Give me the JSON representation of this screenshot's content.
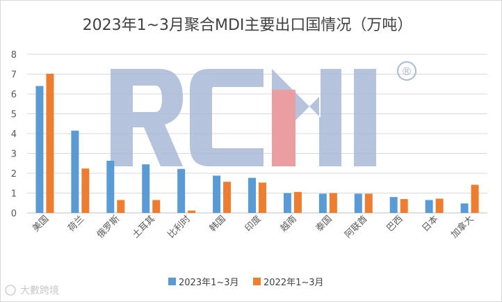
{
  "chart_data": {
    "type": "bar",
    "title": "2023年1~3月聚合MDI主要出口国情况（万吨）",
    "categories": [
      "美国",
      "荷兰",
      "俄罗斯",
      "土耳其",
      "比利时",
      "韩国",
      "印度",
      "越南",
      "泰国",
      "阿联酋",
      "巴西",
      "日本",
      "加拿大"
    ],
    "series": [
      {
        "name": "2023年1~3月",
        "color": "#5b9bd5",
        "values": [
          6.4,
          4.15,
          2.63,
          2.45,
          2.22,
          1.88,
          1.77,
          1.0,
          0.97,
          0.97,
          0.8,
          0.65,
          0.48
        ]
      },
      {
        "name": "2022年1~3月",
        "color": "#ed7d31",
        "values": [
          7.02,
          2.24,
          0.65,
          0.65,
          0.12,
          1.57,
          1.53,
          1.06,
          1.0,
          0.97,
          0.7,
          0.72,
          1.42
        ]
      }
    ],
    "yticks": [
      0,
      1,
      2,
      3,
      4,
      5,
      6,
      7,
      8
    ],
    "ylim": [
      0,
      8
    ],
    "grid": true,
    "legend_position": "bottom"
  },
  "watermark": {
    "logo_text": "RCMI",
    "registered_mark": "®",
    "corner_text": "大數跨境"
  }
}
